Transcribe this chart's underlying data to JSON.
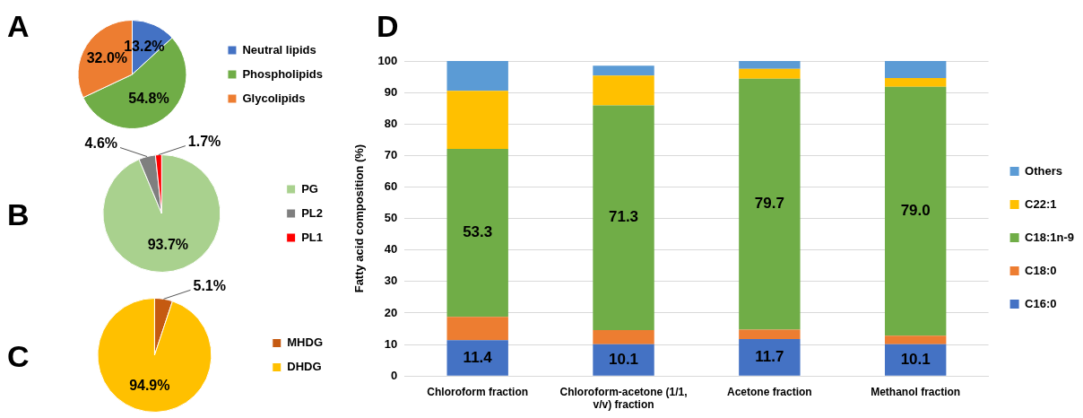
{
  "chart_data": [
    {
      "type": "pie",
      "title": "A",
      "categories": [
        "Neutral lipids",
        "Phospholipids",
        "Glycolipids"
      ],
      "values": [
        13.2,
        54.8,
        32.0
      ],
      "colors": [
        "#4472c4",
        "#70ad47",
        "#ed7d31"
      ],
      "value_labels": [
        "13.2%",
        "54.8%",
        "32.0%"
      ],
      "legend": "right"
    },
    {
      "type": "pie",
      "title": "B",
      "categories": [
        "PG",
        "PL2",
        "PL1"
      ],
      "values": [
        93.7,
        4.6,
        1.7
      ],
      "colors": [
        "#a9d18e",
        "#7f7f7f",
        "#ff0000"
      ],
      "value_labels": [
        "93.7%",
        "4.6%",
        "1.7%"
      ],
      "legend": "right"
    },
    {
      "type": "pie",
      "title": "C",
      "categories": [
        "MHDG",
        "DHDG"
      ],
      "values": [
        5.1,
        94.9
      ],
      "colors": [
        "#c55a11",
        "#ffc000"
      ],
      "value_labels": [
        "5.1%",
        "94.9%"
      ],
      "legend": "right"
    },
    {
      "type": "bar",
      "title": "D",
      "stacked": true,
      "ylabel": "Fatty acid composition (%)",
      "categories": [
        "Chloroform fraction",
        "Chloroform-acetone (1/1, v/v) fraction",
        "Acetone fraction",
        "Methanol fraction"
      ],
      "ylim": [
        0,
        100
      ],
      "yticks": [
        0,
        10,
        20,
        30,
        40,
        50,
        60,
        70,
        80,
        90,
        100
      ],
      "grid": "y",
      "legend": "right",
      "series": [
        {
          "name": "C16:0",
          "color": "#4472c4",
          "values": [
            11.4,
            10.1,
            11.7,
            10.1
          ],
          "value_labels": [
            "11.4",
            "10.1",
            "11.7",
            "10.1"
          ]
        },
        {
          "name": "C18:0",
          "color": "#ed7d31",
          "values": [
            7.4,
            4.5,
            3.0,
            2.7
          ]
        },
        {
          "name": "C18:1n-9",
          "color": "#70ad47",
          "values": [
            53.3,
            71.3,
            79.7,
            79.0
          ],
          "value_labels": [
            "53.3",
            "71.3",
            "79.7",
            "79.0"
          ]
        },
        {
          "name": "C22:1",
          "color": "#ffc000",
          "values": [
            18.4,
            9.5,
            3.1,
            2.8
          ]
        },
        {
          "name": "Others",
          "color": "#5b9bd5",
          "values": [
            9.5,
            3.1,
            2.5,
            5.4
          ]
        }
      ]
    }
  ]
}
